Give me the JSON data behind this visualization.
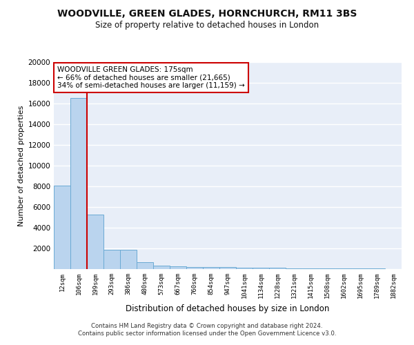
{
  "title": "WOODVILLE, GREEN GLADES, HORNCHURCH, RM11 3BS",
  "subtitle": "Size of property relative to detached houses in London",
  "xlabel": "Distribution of detached houses by size in London",
  "ylabel": "Number of detached properties",
  "categories": [
    "12sqm",
    "106sqm",
    "199sqm",
    "293sqm",
    "386sqm",
    "480sqm",
    "573sqm",
    "667sqm",
    "760sqm",
    "854sqm",
    "947sqm",
    "1041sqm",
    "1134sqm",
    "1228sqm",
    "1321sqm",
    "1415sqm",
    "1508sqm",
    "1602sqm",
    "1695sqm",
    "1789sqm",
    "1882sqm"
  ],
  "values": [
    8100,
    16500,
    5300,
    1850,
    1850,
    700,
    320,
    270,
    220,
    185,
    185,
    160,
    130,
    110,
    90,
    75,
    65,
    55,
    45,
    35,
    30
  ],
  "bar_color": "#bad4ee",
  "bar_edge_color": "#6aaad4",
  "bg_color": "#e8eef8",
  "grid_color": "#ffffff",
  "vline_x": 1.5,
  "vline_color": "#cc0000",
  "annotation_text": "WOODVILLE GREEN GLADES: 175sqm\n← 66% of detached houses are smaller (21,665)\n34% of semi-detached houses are larger (11,159) →",
  "annotation_box_color": "#ffffff",
  "annotation_box_edge": "#cc0000",
  "footer": "Contains HM Land Registry data © Crown copyright and database right 2024.\nContains public sector information licensed under the Open Government Licence v3.0.",
  "ylim": [
    0,
    20000
  ],
  "yticks": [
    0,
    2000,
    4000,
    6000,
    8000,
    10000,
    12000,
    14000,
    16000,
    18000,
    20000
  ]
}
